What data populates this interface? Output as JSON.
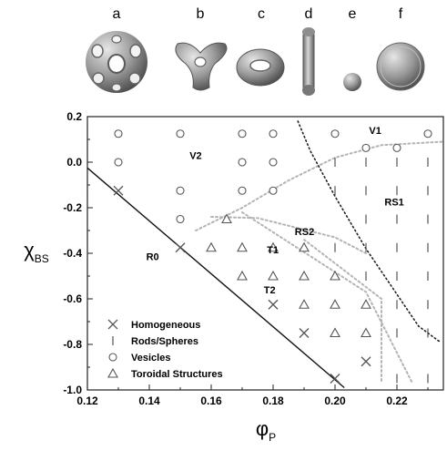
{
  "panels": {
    "labels": [
      "a",
      "b",
      "c",
      "d",
      "e",
      "f"
    ]
  },
  "colors": {
    "shape_fill": "#8c8c8c",
    "shape_highlight": "#dcdcdc",
    "marker": "#555555",
    "frame": "#222222",
    "solid_line": "#111111",
    "dotted_gray": "#b4b4b4",
    "dotted_black": "#222222"
  },
  "chart_data": {
    "type": "scatter",
    "xlabel_main": "φ",
    "xlabel_sub": "P",
    "ylabel_main": "χ",
    "ylabel_sub": "BS",
    "xlim": [
      0.12,
      0.235
    ],
    "ylim": [
      -1.0,
      0.2
    ],
    "x_ticks": [
      0.12,
      0.14,
      0.16,
      0.18,
      0.2,
      0.22
    ],
    "x_tick_labels": [
      "0.12",
      "0.14",
      "0.16",
      "0.18",
      "0.20",
      "0.22"
    ],
    "y_ticks": [
      0.2,
      0.0,
      -0.2,
      -0.4,
      -0.6,
      -0.8,
      -1.0
    ],
    "y_tick_labels": [
      "0.2",
      "0.0",
      "-0.2",
      "-0.4",
      "-0.6",
      "-0.8",
      "-1.0"
    ],
    "series": [
      {
        "name": "Homogeneous",
        "marker": "x",
        "points": [
          [
            0.13,
            -0.125
          ],
          [
            0.15,
            -0.375
          ],
          [
            0.18,
            -0.625
          ],
          [
            0.19,
            -0.75
          ],
          [
            0.2,
            -0.95
          ],
          [
            0.21,
            -0.875
          ]
        ]
      },
      {
        "name": "Rods/Spheres",
        "marker": "bar",
        "points": [
          [
            0.2,
            -0.125
          ],
          [
            0.21,
            -0.125
          ],
          [
            0.22,
            -0.125
          ],
          [
            0.23,
            -0.125
          ],
          [
            0.21,
            -0.25
          ],
          [
            0.22,
            -0.25
          ],
          [
            0.23,
            -0.25
          ],
          [
            0.2,
            0.0
          ],
          [
            0.21,
            0.0
          ],
          [
            0.22,
            0.0
          ],
          [
            0.23,
            0.0
          ],
          [
            0.2,
            -0.375
          ],
          [
            0.21,
            -0.375
          ],
          [
            0.22,
            -0.375
          ],
          [
            0.23,
            -0.375
          ],
          [
            0.21,
            -0.5
          ],
          [
            0.22,
            -0.5
          ],
          [
            0.23,
            -0.5
          ],
          [
            0.22,
            -0.625
          ],
          [
            0.23,
            -0.625
          ],
          [
            0.22,
            -0.75
          ],
          [
            0.23,
            -0.75
          ],
          [
            0.22,
            -0.95
          ],
          [
            0.23,
            -0.95
          ]
        ]
      },
      {
        "name": "Vesicles",
        "marker": "circle",
        "points": [
          [
            0.13,
            0.125
          ],
          [
            0.15,
            0.125
          ],
          [
            0.17,
            0.125
          ],
          [
            0.18,
            0.125
          ],
          [
            0.2,
            0.125
          ],
          [
            0.23,
            0.125
          ],
          [
            0.13,
            0.0
          ],
          [
            0.17,
            0.0
          ],
          [
            0.18,
            0.0
          ],
          [
            0.21,
            0.0625
          ],
          [
            0.22,
            0.0625
          ],
          [
            0.15,
            -0.125
          ],
          [
            0.17,
            -0.125
          ],
          [
            0.18,
            -0.125
          ],
          [
            0.15,
            -0.25
          ]
        ]
      },
      {
        "name": "Toroidal Structures",
        "marker": "triangle",
        "points": [
          [
            0.165,
            -0.25
          ],
          [
            0.16,
            -0.375
          ],
          [
            0.17,
            -0.375
          ],
          [
            0.18,
            -0.375
          ],
          [
            0.19,
            -0.375
          ],
          [
            0.17,
            -0.5
          ],
          [
            0.18,
            -0.5
          ],
          [
            0.19,
            -0.5
          ],
          [
            0.2,
            -0.5
          ],
          [
            0.19,
            -0.625
          ],
          [
            0.2,
            -0.625
          ],
          [
            0.21,
            -0.625
          ],
          [
            0.2,
            -0.75
          ],
          [
            0.21,
            -0.75
          ]
        ]
      }
    ],
    "region_labels": [
      {
        "text": "V1",
        "x": 0.211,
        "y": 0.125
      },
      {
        "text": "V2",
        "x": 0.153,
        "y": 0.015
      },
      {
        "text": "RS1",
        "x": 0.216,
        "y": -0.19
      },
      {
        "text": "RS2",
        "x": 0.187,
        "y": -0.32
      },
      {
        "text": "R0",
        "x": 0.139,
        "y": -0.43
      },
      {
        "text": "T1",
        "x": 0.178,
        "y": -0.4
      },
      {
        "text": "T2",
        "x": 0.177,
        "y": -0.575
      }
    ],
    "solid_boundary": [
      [
        0.12,
        -0.025
      ],
      [
        0.203,
        -0.99
      ]
    ],
    "dotted_black_boundary": [
      [
        0.188,
        0.18
      ],
      [
        0.192,
        0.05
      ],
      [
        0.2,
        -0.15
      ],
      [
        0.21,
        -0.38
      ],
      [
        0.22,
        -0.58
      ],
      [
        0.227,
        -0.72
      ],
      [
        0.234,
        -0.79
      ]
    ],
    "dotted_gray_boundaries": [
      [
        [
          0.155,
          -0.3
        ],
        [
          0.17,
          -0.2
        ],
        [
          0.185,
          -0.08
        ],
        [
          0.2,
          0.02
        ],
        [
          0.215,
          0.075
        ],
        [
          0.235,
          0.09
        ]
      ],
      [
        [
          0.16,
          -0.24
        ],
        [
          0.175,
          -0.245
        ],
        [
          0.2,
          -0.33
        ],
        [
          0.21,
          -0.4
        ]
      ],
      [
        [
          0.17,
          -0.22
        ],
        [
          0.21,
          -0.57
        ],
        [
          0.225,
          -0.97
        ]
      ],
      [
        [
          0.19,
          -0.34
        ],
        [
          0.215,
          -0.6
        ],
        [
          0.215,
          -0.97
        ]
      ]
    ],
    "legend": {
      "placement": "bottom-left",
      "entries": [
        "Homogeneous",
        "Rods/Spheres",
        "Vesicles",
        "Toroidal Structures"
      ]
    },
    "grid": false
  }
}
